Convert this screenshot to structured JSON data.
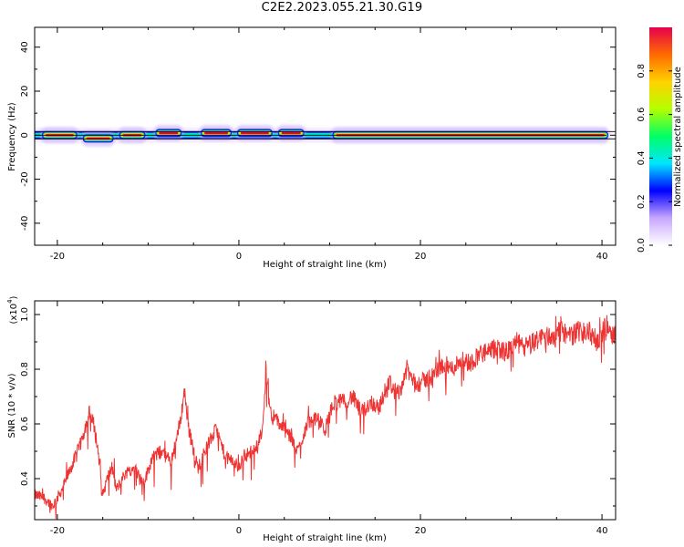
{
  "title": "C2E2.2023.055.21.30.G19",
  "chart_data": [
    {
      "type": "heatmap",
      "xlabel": "Height of straight line (km)",
      "ylabel": "Frequency (Hz)",
      "xlim": [
        -22.5,
        41.5
      ],
      "ylim": [
        -50,
        49
      ],
      "xticks": [
        -20,
        0,
        20,
        40
      ],
      "yticks": [
        40,
        20,
        0,
        -20,
        -40
      ],
      "colorbar": {
        "label": "Normalized spectral amplitude",
        "range": [
          0,
          1
        ],
        "ticks": [
          "0.0",
          "0.2",
          "0.4",
          "0.6",
          "0.8"
        ],
        "colors": [
          "#ffffff",
          "#c8a6ff",
          "#0000ff",
          "#00e6ff",
          "#00ff66",
          "#b4ff00",
          "#ffd200",
          "#ff6a00",
          "#e6004c"
        ]
      },
      "ridge": {
        "frequency_hz": 0,
        "x_start_km": -22.5,
        "x_end_km": 40.5,
        "segments": [
          {
            "x": [
              -21.5,
              -18.0
            ],
            "amplitude": 0.9
          },
          {
            "x": [
              -17.0,
              -14.0
            ],
            "amplitude": 0.75,
            "freq_offset_hz": -1.5
          },
          {
            "x": [
              -13.0,
              -10.5
            ],
            "amplitude": 0.8
          },
          {
            "x": [
              -9.0,
              -6.5
            ],
            "amplitude": 0.8,
            "freq_offset_hz": 1
          },
          {
            "x": [
              -4.0,
              -1.0
            ],
            "amplitude": 0.85,
            "freq_offset_hz": 1
          },
          {
            "x": [
              0.0,
              3.5
            ],
            "amplitude": 0.85,
            "freq_offset_hz": 1
          },
          {
            "x": [
              4.5,
              7.0
            ],
            "amplitude": 0.85,
            "freq_offset_hz": 1
          },
          {
            "x": [
              10.5,
              40.5
            ],
            "amplitude": 0.92
          }
        ]
      }
    },
    {
      "type": "line",
      "xlabel": "Height of straight line (km)",
      "ylabel": "SNR (10 * v/v)",
      "y_multiplier": "x10^4",
      "y_multiplier_base": "(x10",
      "y_multiplier_exp": "4",
      "xlim": [
        -22.5,
        41.5
      ],
      "ylim": [
        0.25,
        1.05
      ],
      "xticks": [
        -20,
        0,
        20,
        40
      ],
      "yticks": [
        0.4,
        0.6,
        0.8,
        1.0
      ],
      "ytick_labels": [
        "0.4",
        "0.6",
        "0.8",
        "1.0"
      ],
      "color": "#ee3333",
      "series": [
        {
          "x": [
            -22.5,
            -21.5,
            -20.5,
            -19.5,
            -18.5,
            -17.5,
            -16.5,
            -16.0,
            -15.5,
            -15.0,
            -14.5,
            -14.0,
            -13.5,
            -12.5,
            -11.5,
            -10.5,
            -9.5,
            -8.5,
            -7.5,
            -6.5,
            -6.0,
            -5.5,
            -5.0,
            -4.5,
            -3.5,
            -2.5,
            -1.5,
            -0.5,
            0.0,
            0.5,
            1.5,
            2.5,
            3.0,
            3.5,
            4.5,
            5.5,
            6.5,
            7.5,
            8.5,
            9.5,
            10.5,
            11.5,
            12.5,
            13.5,
            14.5,
            15.5,
            16.5,
            17.5,
            18.5,
            19.5,
            20.5,
            21.5,
            22.5,
            23.5,
            24.5,
            25.5,
            26.5,
            27.5,
            28.5,
            29.5,
            30.5,
            31.5,
            32.5,
            33.5,
            34.5,
            35.5,
            36.5,
            37.5,
            38.5,
            39.5,
            40.5,
            41.5
          ],
          "y": [
            0.34,
            0.33,
            0.3,
            0.36,
            0.44,
            0.52,
            0.64,
            0.6,
            0.5,
            0.34,
            0.4,
            0.44,
            0.36,
            0.42,
            0.44,
            0.38,
            0.48,
            0.5,
            0.46,
            0.6,
            0.72,
            0.58,
            0.5,
            0.44,
            0.52,
            0.58,
            0.48,
            0.46,
            0.44,
            0.48,
            0.5,
            0.56,
            0.78,
            0.64,
            0.6,
            0.56,
            0.5,
            0.6,
            0.62,
            0.58,
            0.68,
            0.68,
            0.7,
            0.64,
            0.68,
            0.66,
            0.76,
            0.7,
            0.8,
            0.74,
            0.76,
            0.78,
            0.82,
            0.8,
            0.84,
            0.82,
            0.86,
            0.86,
            0.88,
            0.86,
            0.9,
            0.88,
            0.9,
            0.92,
            0.92,
            0.94,
            0.92,
            0.94,
            0.94,
            0.9,
            0.96,
            0.92
          ]
        }
      ]
    }
  ]
}
